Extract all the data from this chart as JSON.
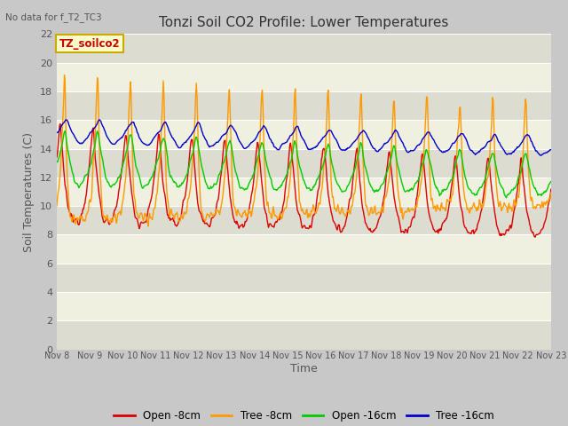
{
  "title": "Tonzi Soil CO2 Profile: Lower Temperatures",
  "subtitle": "No data for f_T2_TC3",
  "xlabel": "Time",
  "ylabel": "Soil Temperatures (C)",
  "ylim": [
    0,
    22
  ],
  "yticks": [
    0,
    2,
    4,
    6,
    8,
    10,
    12,
    14,
    16,
    18,
    20,
    22
  ],
  "x_labels": [
    "Nov 8",
    "Nov 9",
    "Nov 10",
    "Nov 11",
    "Nov 12",
    "Nov 13",
    "Nov 14",
    "Nov 15",
    "Nov 16",
    "Nov 17",
    "Nov 18",
    "Nov 19",
    "Nov 20",
    "Nov 21",
    "Nov 22",
    "Nov 23"
  ],
  "annotation_text": "TZ_soilco2",
  "annotation_color": "#cc0000",
  "annotation_bg": "#ffffcc",
  "annotation_border": "#ccaa00",
  "colors": {
    "open_8cm": "#dd0000",
    "tree_8cm": "#ff9900",
    "open_16cm": "#00cc00",
    "tree_16cm": "#0000cc"
  },
  "legend_labels": [
    "Open -8cm",
    "Tree -8cm",
    "Open -16cm",
    "Tree -16cm"
  ],
  "fig_bg": "#c8c8c8",
  "plot_bg": "#f5f5e8",
  "grid_color": "#ffffff",
  "band_color_light": "#f0f0e0",
  "band_color_dark": "#dcdcd0"
}
